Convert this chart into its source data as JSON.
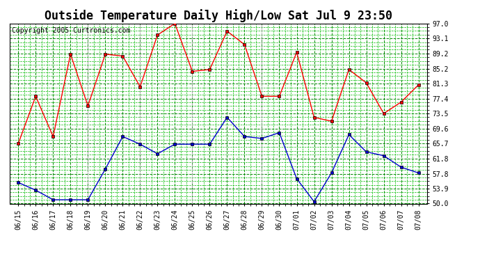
{
  "title": "Outside Temperature Daily High/Low Sat Jul 9 23:50",
  "copyright": "Copyright 2005 Curtronics.com",
  "x_labels": [
    "06/15",
    "06/16",
    "06/17",
    "06/18",
    "06/19",
    "06/20",
    "06/21",
    "06/22",
    "06/23",
    "06/24",
    "06/25",
    "06/26",
    "06/27",
    "06/28",
    "06/29",
    "06/30",
    "07/01",
    "07/02",
    "07/03",
    "07/04",
    "07/05",
    "07/06",
    "07/07",
    "07/08"
  ],
  "high_temps": [
    65.7,
    78.0,
    67.5,
    89.0,
    75.5,
    89.0,
    88.5,
    80.5,
    94.0,
    97.0,
    84.5,
    85.0,
    95.0,
    91.5,
    78.0,
    78.0,
    89.5,
    72.5,
    71.5,
    85.0,
    81.5,
    73.5,
    76.5,
    81.0
  ],
  "low_temps": [
    55.5,
    53.5,
    51.0,
    51.0,
    51.0,
    59.0,
    67.5,
    65.5,
    63.0,
    65.5,
    65.5,
    65.5,
    72.5,
    67.5,
    67.0,
    68.5,
    56.5,
    50.5,
    58.0,
    68.0,
    63.5,
    62.5,
    59.5,
    58.0
  ],
  "high_color": "#ff0000",
  "low_color": "#0000cc",
  "bg_color": "#ffffff",
  "plot_bg_color": "#ffffff",
  "grid_major_color": "#008800",
  "grid_minor_color": "#00bb00",
  "grid_dashed_color": "#aaaaaa",
  "title_color": "#000000",
  "copyright_color": "#000000",
  "y_min": 50.0,
  "y_max": 97.0,
  "y_ticks": [
    50.0,
    53.9,
    57.8,
    61.8,
    65.7,
    69.6,
    73.5,
    77.4,
    81.3,
    85.2,
    89.2,
    93.1,
    97.0
  ],
  "title_fontsize": 12,
  "tick_fontsize": 7,
  "copyright_fontsize": 7
}
